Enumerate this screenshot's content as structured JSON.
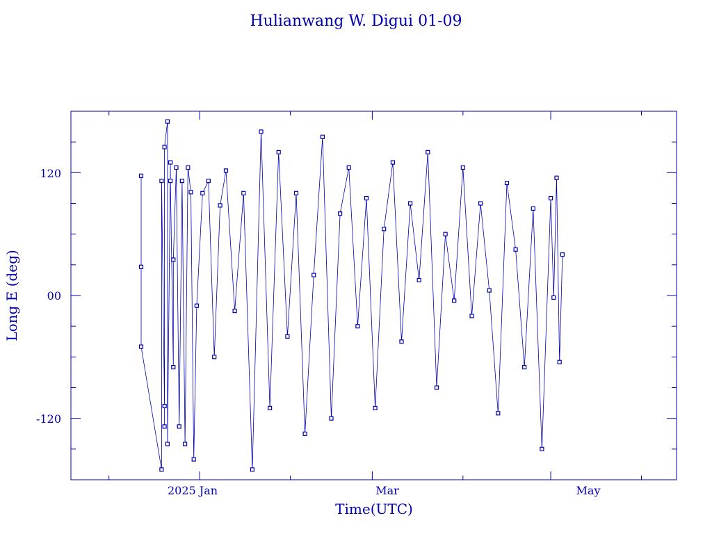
{
  "chart_data": {
    "type": "scatter",
    "title": "Hulianwang W. Digui 01-09",
    "xlabel": "Time(UTC)",
    "ylabel": "Long E (deg)",
    "x_tick_labels": [
      "2025 Jan",
      "Mar",
      "May"
    ],
    "y_tick_labels": [
      "120",
      "00",
      "-120"
    ],
    "y_ticks": [
      120,
      0,
      -120
    ],
    "ylim": [
      -180,
      180
    ],
    "xlim": [
      "2024-11-18",
      "2025-06-13"
    ],
    "grid": false,
    "legend": "none",
    "color": "#0000b0",
    "series": [
      {
        "x": [
          "2024-12-12",
          "2024-12-12",
          "2024-12-12",
          "2024-12-19",
          "2024-12-19",
          "2024-12-20",
          "2024-12-20",
          "2024-12-20",
          "2024-12-21",
          "2024-12-21",
          "2024-12-22",
          "2024-12-22",
          "2024-12-23",
          "2024-12-23",
          "2024-12-24",
          "2024-12-25",
          "2024-12-26",
          "2024-12-27",
          "2024-12-28",
          "2024-12-29",
          "2024-12-30",
          "2024-12-31",
          "2025-01-02",
          "2025-01-04",
          "2025-01-06",
          "2025-01-08",
          "2025-01-10",
          "2025-01-13",
          "2025-01-16",
          "2025-01-19",
          "2025-01-22",
          "2025-01-25",
          "2025-01-28",
          "2025-01-31",
          "2025-02-03",
          "2025-02-06",
          "2025-02-09",
          "2025-02-12",
          "2025-02-15",
          "2025-02-18",
          "2025-02-21",
          "2025-02-24",
          "2025-02-27",
          "2025-03-02",
          "2025-03-05",
          "2025-03-08",
          "2025-03-11",
          "2025-03-14",
          "2025-03-17",
          "2025-03-20",
          "2025-03-23",
          "2025-03-26",
          "2025-03-29",
          "2025-04-01",
          "2025-04-04",
          "2025-04-07",
          "2025-04-10",
          "2025-04-13",
          "2025-04-16",
          "2025-04-19",
          "2025-04-22",
          "2025-04-25",
          "2025-04-28",
          "2025-05-01",
          "2025-05-02",
          "2025-05-03",
          "2025-05-04",
          "2025-05-05"
        ],
        "y": [
          117,
          28,
          -50,
          -170,
          112,
          -108,
          -128,
          145,
          170,
          -145,
          130,
          112,
          -70,
          35,
          125,
          -128,
          112,
          -145,
          125,
          101,
          -160,
          -10,
          100,
          112,
          -60,
          88,
          122,
          -15,
          100,
          -170,
          160,
          -110,
          140,
          -40,
          100,
          -135,
          20,
          155,
          -120,
          80,
          125,
          -30,
          95,
          -110,
          65,
          130,
          -45,
          90,
          15,
          140,
          -90,
          60,
          -5,
          125,
          -20,
          90,
          5,
          -115,
          110,
          45,
          -70,
          85,
          -150,
          95,
          -2,
          115,
          -65,
          40
        ]
      }
    ]
  }
}
